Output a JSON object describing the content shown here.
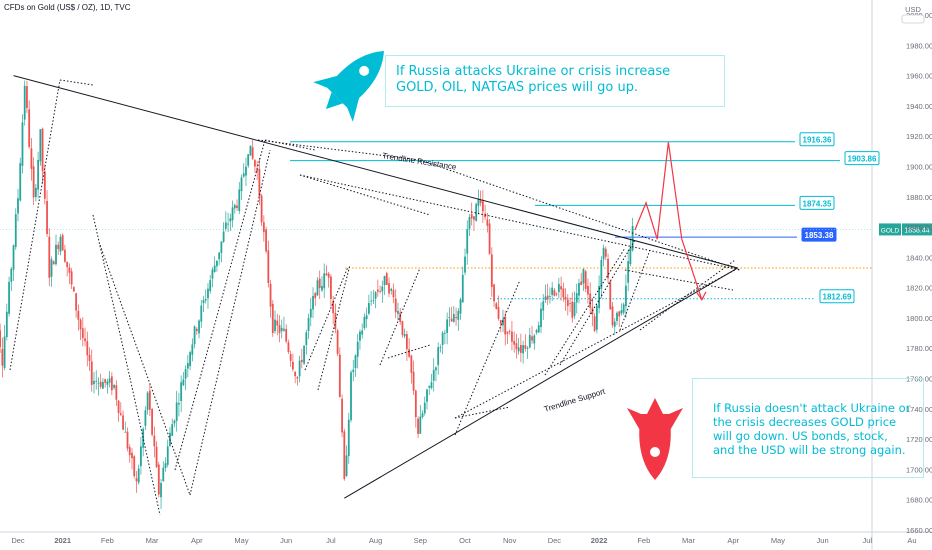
{
  "header": {
    "symbol_line": "CFDs on Gold (US$ / OZ), 1D, TVC"
  },
  "currency": "USD",
  "notes": {
    "up": "If Russia attacks Ukraine or crisis increase GOLD, OIL, NATGAS prices will go up.",
    "down": "If Russia doesn't attack Ukraine or the crisis decreases GOLD price will go down.  US bonds, stock, and the USD will be strong again."
  },
  "colors": {
    "up": "#26a69a",
    "down": "#ef5350",
    "cyan": "#00bcd4",
    "rocket_up": "#00bcd4",
    "rocket_down": "#f23645",
    "scenario": "#f23645",
    "blue_label": "#2962ff"
  },
  "icons": {
    "rocket_up": "rocket-up-icon",
    "rocket_down": "rocket-down-icon"
  },
  "chart_data": {
    "type": "candlestick",
    "instrument": "CFDs on Gold (US$ / OZ)",
    "timeframe": "1D",
    "source": "TVC",
    "x_ticks": [
      "Dec",
      "2021",
      "Feb",
      "Mar",
      "Apr",
      "May",
      "Jun",
      "Jul",
      "Aug",
      "Sep",
      "Oct",
      "Nov",
      "Dec",
      "2022",
      "Feb",
      "Mar",
      "Apr",
      "May",
      "Jun",
      "Jul",
      "Au"
    ],
    "y_ticks": [
      2000,
      1980,
      1960,
      1940,
      1920,
      1900,
      1880,
      1860,
      1840,
      1820,
      1800,
      1780,
      1760,
      1740,
      1720,
      1700,
      1680,
      1660
    ],
    "y_tick_labels": [
      "2000.00",
      "1980.00",
      "1960.00",
      "1940.00",
      "1920.00",
      "1900.00",
      "1880.00",
      "1860.00",
      "1840.00",
      "1820.00",
      "1800.00",
      "1780.00",
      "1760.00",
      "1740.00",
      "1720.00",
      "1700.00",
      "1680.00",
      "1660.00"
    ],
    "ylim": [
      1655,
      2010
    ],
    "last_price": {
      "label": "GOLD",
      "value": "1858.44"
    },
    "price_levels": [
      {
        "label": "1916.36",
        "value": 1916.36,
        "style": "outline"
      },
      {
        "label": "1903.86",
        "value": 1903.86,
        "style": "outline"
      },
      {
        "label": "1874.35",
        "value": 1874.35,
        "style": "outline"
      },
      {
        "label": "1853.38",
        "value": 1853.38,
        "style": "blue"
      },
      {
        "label": "1812.69",
        "value": 1812.69,
        "style": "outline"
      }
    ],
    "trendlines": [
      {
        "label": "Trendline Resistance",
        "from": [
          -0.1,
          1960
        ],
        "to": [
          16.1,
          1833
        ]
      },
      {
        "label": "Trendline Support",
        "from": [
          7.3,
          1681
        ],
        "to": [
          16.1,
          1833
        ]
      }
    ],
    "bull_scenario_path": [
      [
        13.8,
        1858
      ],
      [
        14.05,
        1876
      ],
      [
        14.3,
        1852
      ],
      [
        14.55,
        1916
      ],
      [
        14.85,
        1852
      ]
    ],
    "bear_scenario_path": [
      [
        14.85,
        1852
      ],
      [
        15.3,
        1812
      ]
    ],
    "waypoints": [
      [
        -0.6,
        1840
      ],
      [
        -0.3,
        1773
      ],
      [
        0.05,
        1880
      ],
      [
        0.2,
        1955
      ],
      [
        0.4,
        1876
      ],
      [
        0.55,
        1920
      ],
      [
        0.75,
        1830
      ],
      [
        1.0,
        1855
      ],
      [
        1.4,
        1800
      ],
      [
        1.7,
        1760
      ],
      [
        2.2,
        1755
      ],
      [
        2.7,
        1690
      ],
      [
        2.95,
        1750
      ],
      [
        3.2,
        1685
      ],
      [
        3.5,
        1730
      ],
      [
        3.9,
        1780
      ],
      [
        4.3,
        1820
      ],
      [
        4.7,
        1860
      ],
      [
        5.0,
        1880
      ],
      [
        5.2,
        1913
      ],
      [
        5.4,
        1896
      ],
      [
        5.6,
        1840
      ],
      [
        5.75,
        1795
      ],
      [
        6.0,
        1790
      ],
      [
        6.3,
        1760
      ],
      [
        6.7,
        1818
      ],
      [
        7.0,
        1830
      ],
      [
        7.2,
        1780
      ],
      [
        7.35,
        1690
      ],
      [
        7.5,
        1760
      ],
      [
        7.8,
        1800
      ],
      [
        8.0,
        1815
      ],
      [
        8.3,
        1825
      ],
      [
        8.6,
        1800
      ],
      [
        8.85,
        1762
      ],
      [
        9.0,
        1725
      ],
      [
        9.3,
        1760
      ],
      [
        9.6,
        1795
      ],
      [
        9.9,
        1800
      ],
      [
        10.1,
        1860
      ],
      [
        10.35,
        1876
      ],
      [
        10.55,
        1860
      ],
      [
        10.7,
        1808
      ],
      [
        11.0,
        1790
      ],
      [
        11.3,
        1780
      ],
      [
        11.6,
        1790
      ],
      [
        11.9,
        1815
      ],
      [
        12.2,
        1822
      ],
      [
        12.45,
        1805
      ],
      [
        12.7,
        1830
      ],
      [
        12.95,
        1790
      ],
      [
        13.15,
        1850
      ],
      [
        13.35,
        1795
      ],
      [
        13.6,
        1812
      ],
      [
        13.8,
        1858
      ]
    ]
  }
}
